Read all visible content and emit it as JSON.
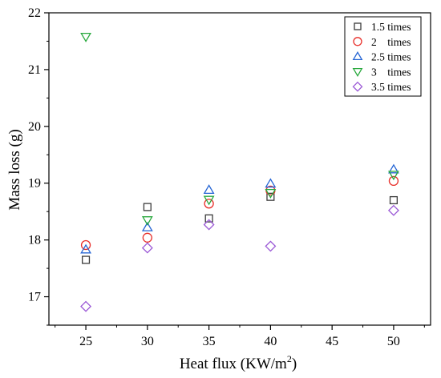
{
  "chart_data": {
    "type": "scatter",
    "xlabel": "Heat flux (KW/m",
    "xlabel_sup": "2",
    "xlabel_close": ")",
    "ylabel": "Mass loss (g)",
    "xlim": [
      22,
      53
    ],
    "ylim": [
      16.5,
      22
    ],
    "xticks": [
      "25",
      "30",
      "35",
      "40",
      "45",
      "50"
    ],
    "yticks": [
      "17",
      "18",
      "19",
      "20",
      "21",
      "22"
    ],
    "legend_position": "top-right",
    "series": [
      {
        "name": "1.5 times",
        "marker": "square",
        "color": "#3a3a3a",
        "x": [
          25,
          30,
          35,
          40,
          50
        ],
        "y": [
          17.65,
          18.58,
          18.38,
          18.76,
          18.7
        ]
      },
      {
        "name": "2    times",
        "marker": "circle",
        "color": "#e8302b",
        "x": [
          25,
          30,
          35,
          40,
          50
        ],
        "y": [
          17.91,
          18.04,
          18.64,
          18.87,
          19.04
        ]
      },
      {
        "name": "2.5 times",
        "marker": "triangle-up",
        "color": "#2464d4",
        "x": [
          25,
          30,
          35,
          40,
          50
        ],
        "y": [
          17.83,
          18.22,
          18.88,
          18.99,
          19.24
        ]
      },
      {
        "name": "3    times",
        "marker": "triangle-down",
        "color": "#27a83c",
        "x": [
          25,
          30,
          35,
          40,
          50
        ],
        "y": [
          21.58,
          18.35,
          18.71,
          18.83,
          19.15
        ]
      },
      {
        "name": "3.5 times",
        "marker": "diamond",
        "color": "#9b59d6",
        "x": [
          25,
          30,
          35,
          40,
          50
        ],
        "y": [
          16.83,
          17.86,
          18.27,
          17.89,
          18.52
        ]
      }
    ]
  }
}
